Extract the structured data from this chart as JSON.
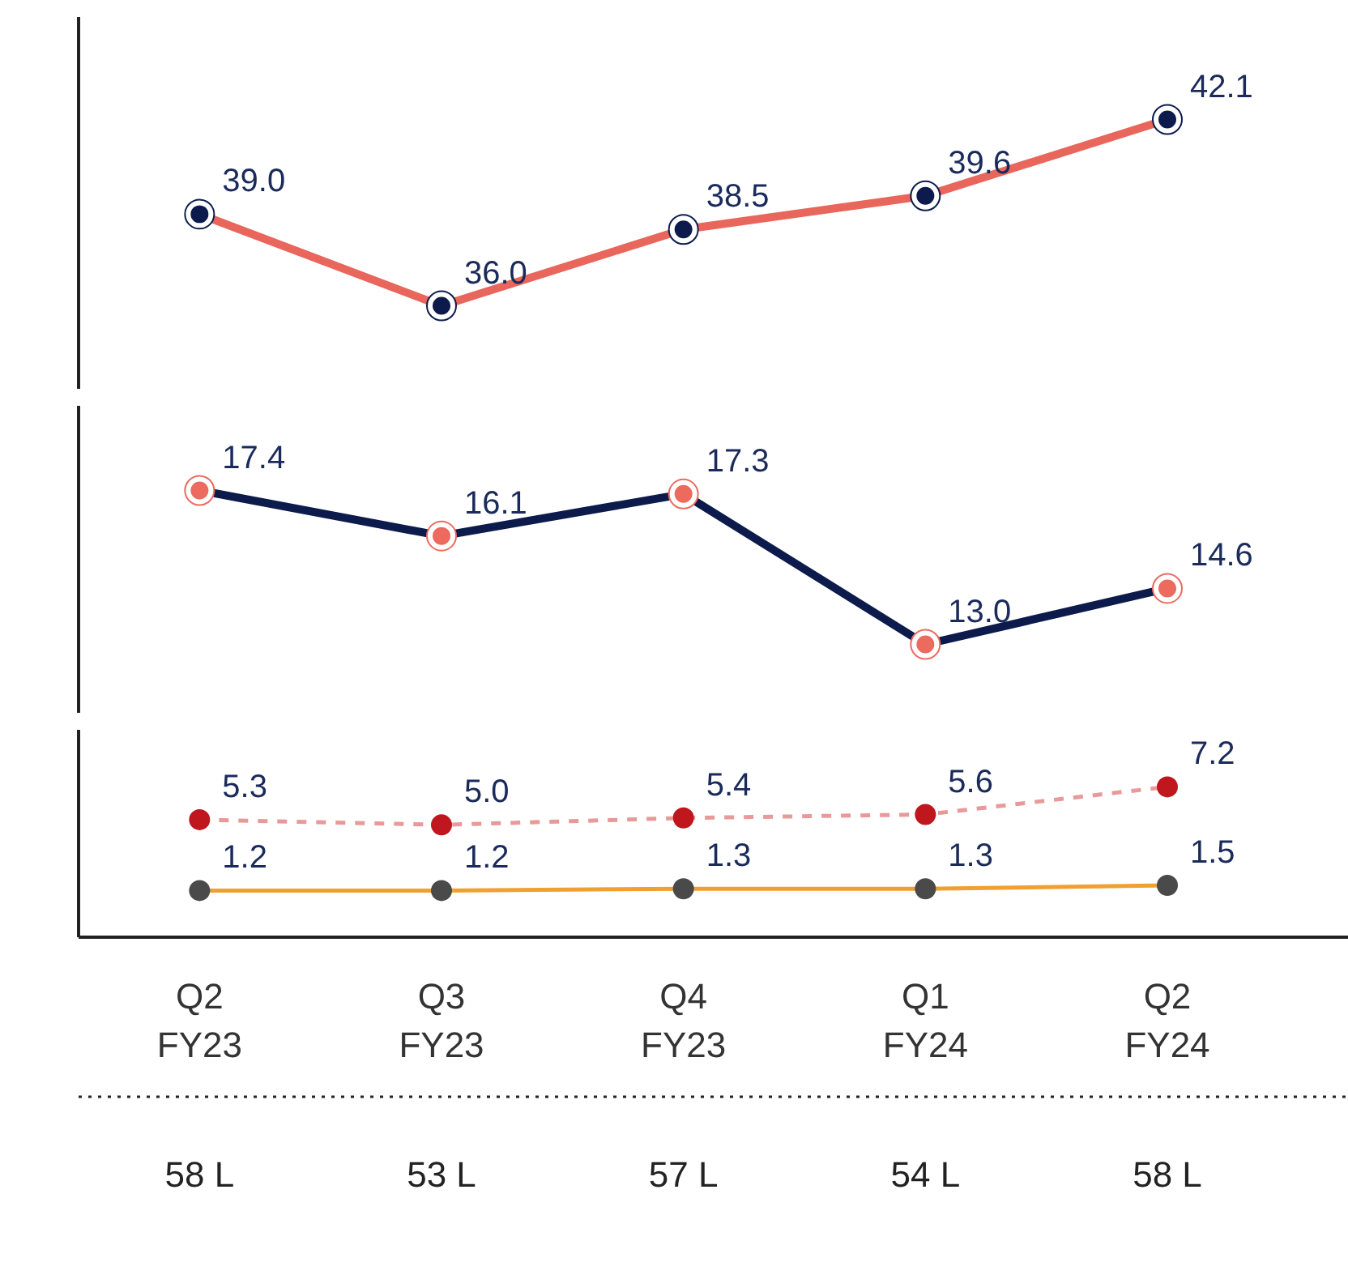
{
  "chart_data": [
    {
      "type": "line",
      "marker": "circle",
      "tick_labels": false,
      "grid": false,
      "series": [
        {
          "color": "#e8665c",
          "colors": [
            "#0d1b4c",
            "#0d1b4c",
            "#0d1b4c",
            "#0d1b4c",
            "#0d1b4c"
          ],
          "values": [
            39.0,
            36.0,
            38.5,
            39.6,
            42.1
          ],
          "value_labels": [
            "39.0",
            "36.0",
            "38.5",
            "39.6",
            "42.1"
          ]
        }
      ]
    },
    {
      "type": "line",
      "marker": "circle",
      "tick_labels": false,
      "grid": false,
      "series": [
        {
          "color": "#0d1b4c",
          "colors": [
            "#ec6a5e",
            "#ec6a5e",
            "#ec6a5e",
            "#ec6a5e",
            "#ec6a5e"
          ],
          "values": [
            17.4,
            16.1,
            17.3,
            13.0,
            14.6
          ],
          "value_labels": [
            "17.4",
            "16.1",
            "17.3",
            "13.0",
            "14.6"
          ]
        }
      ]
    },
    {
      "type": "line",
      "categories": [
        "Q2\nFY23",
        "Q3\nFY23",
        "Q4\nFY23",
        "Q1\nFY24",
        "Q2\nFY24"
      ],
      "marker": "circle",
      "tick_labels": "x",
      "grid": false,
      "annotations": [
        "58 L",
        "53 L",
        "57 L",
        "54 L",
        "58 L"
      ],
      "series": [
        {
          "color": "#e89a9a",
          "colors": [
            "#c0161e",
            "#c0161e",
            "#c0161e",
            "#c0161e",
            "#c0161e"
          ],
          "line_style": "dashed",
          "values": [
            5.3,
            5.0,
            5.4,
            5.6,
            7.2
          ],
          "value_labels": [
            "5.3",
            "5.0",
            "5.4",
            "5.6",
            "7.2"
          ]
        },
        {
          "color": "#f0a030",
          "colors": [
            "#4a4a4a",
            "#4a4a4a",
            "#4a4a4a",
            "#4a4a4a",
            "#4a4a4a"
          ],
          "values": [
            1.2,
            1.2,
            1.3,
            1.3,
            1.5
          ],
          "value_labels": [
            "1.2",
            "1.2",
            "1.3",
            "1.3",
            "1.5"
          ]
        }
      ]
    }
  ]
}
